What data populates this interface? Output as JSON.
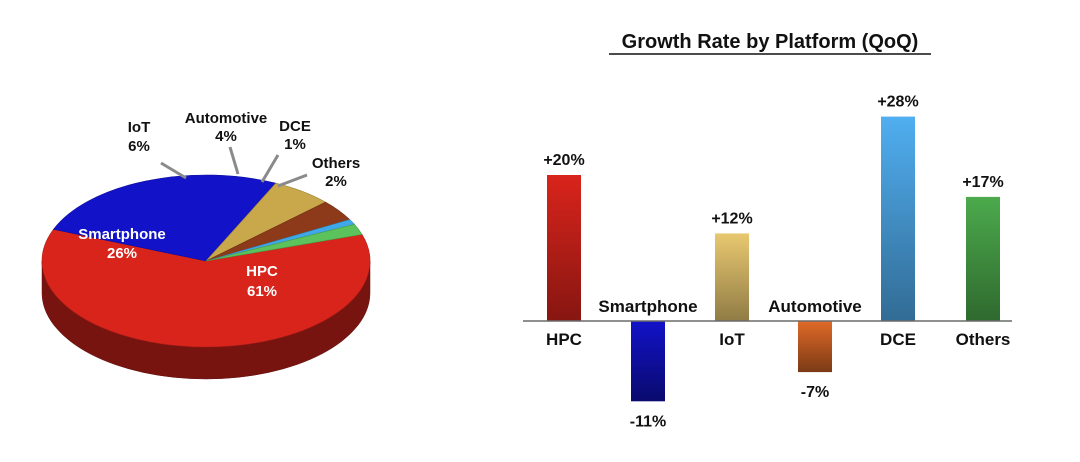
{
  "chart_data": [
    {
      "type": "pie",
      "title": "",
      "slices": [
        {
          "name": "HPC",
          "value": 61,
          "label": "61%",
          "color": "#d9241c"
        },
        {
          "name": "Smartphone",
          "value": 26,
          "label": "26%",
          "color": "#1212c8"
        },
        {
          "name": "IoT",
          "value": 6,
          "label": "6%",
          "color": "#c8a84a"
        },
        {
          "name": "Automotive",
          "value": 4,
          "label": "4%",
          "color": "#8c3a1a"
        },
        {
          "name": "DCE",
          "value": 1,
          "label": "1%",
          "color": "#3fa8e8"
        },
        {
          "name": "Others",
          "value": 2,
          "label": "2%",
          "color": "#5cc25c"
        }
      ]
    },
    {
      "type": "bar",
      "title": "Growth Rate by Platform (QoQ)",
      "categories": [
        "HPC",
        "Smartphone",
        "IoT",
        "Automotive",
        "DCE",
        "Others"
      ],
      "values": [
        20,
        -11,
        12,
        -7,
        28,
        17
      ],
      "value_labels": [
        "+20%",
        "-11%",
        "+12%",
        "-7%",
        "+28%",
        "+17%"
      ],
      "colors": [
        "#d9241c",
        "#1212c8",
        "#e8c870",
        "#e06a28",
        "#50aef0",
        "#4caa4c"
      ],
      "xlabel": "",
      "ylabel": "",
      "grid": false
    }
  ]
}
